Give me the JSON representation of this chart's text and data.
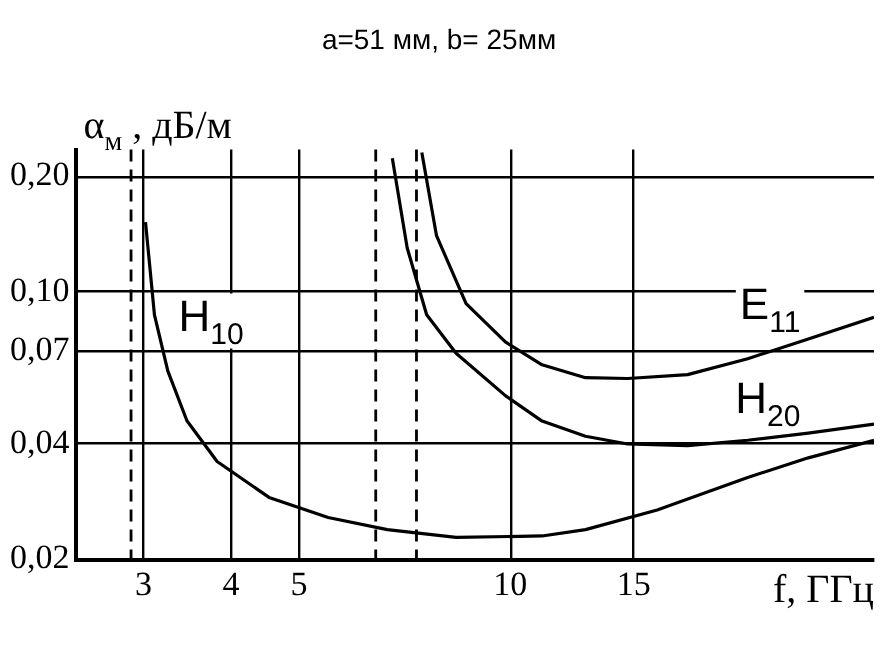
{
  "chart_data": {
    "type": "line",
    "title": "a=51 мм, b= 25мм",
    "xlabel": "f, ГГц",
    "ylabel": "α$_{м}$ , дБ/м",
    "log": "xy",
    "grid": true,
    "legend": false,
    "marker": "none",
    "line_style": "solid",
    "xlim": [
      2.4,
      33
    ],
    "xticks": [
      3,
      4,
      5,
      10,
      15
    ],
    "ylim": [
      0.02,
      0.235
    ],
    "yticks": [
      {
        "value": 0.02,
        "label": "0,02"
      },
      {
        "value": 0.04,
        "label": "0,04"
      },
      {
        "value": 0.07,
        "label": "0,07"
      },
      {
        "value": 0.1,
        "label": "0,10"
      },
      {
        "value": 0.2,
        "label": "0,20"
      }
    ],
    "series": [
      {
        "name": "H$_{10}$",
        "color": "#000000",
        "x": [
          3.02,
          3.11,
          3.25,
          3.46,
          3.82,
          4.53,
          5.5,
          6.68,
          8.37,
          11.1,
          12.8,
          16.2,
          21.8,
          26.6,
          33
        ],
        "values": [
          0.152,
          0.087,
          0.062,
          0.046,
          0.036,
          0.029,
          0.0257,
          0.0239,
          0.0228,
          0.023,
          0.0239,
          0.0269,
          0.0327,
          0.0368,
          0.0409
        ]
      },
      {
        "name": "H$_{20}$",
        "color": "#000000",
        "x": [
          6.79,
          7.13,
          7.6,
          8.37,
          9.84,
          11.1,
          12.8,
          14.7,
          17.9,
          21.8,
          26.6,
          33
        ],
        "values": [
          0.223,
          0.13,
          0.087,
          0.069,
          0.0535,
          0.0459,
          0.0419,
          0.04,
          0.0396,
          0.0409,
          0.0427,
          0.0451
        ]
      },
      {
        "name": "E$_{11}$",
        "color": "#000000",
        "x": [
          7.48,
          7.85,
          8.65,
          9.84,
          11.1,
          12.8,
          14.7,
          17.9,
          21.8,
          26.6,
          33
        ],
        "values": [
          0.231,
          0.14,
          0.093,
          0.0739,
          0.0644,
          0.0596,
          0.0593,
          0.0607,
          0.0668,
          0.0752,
          0.0857
        ]
      }
    ],
    "ref_lines": [
      {
        "axis": "x",
        "value": 2.88,
        "color": "#000000",
        "line_style": "dashed"
      },
      {
        "axis": "x",
        "value": 6.43,
        "color": "#000000",
        "line_style": "dashed"
      },
      {
        "axis": "x",
        "value": 7.35,
        "color": "#000000",
        "line_style": "dashed"
      }
    ]
  }
}
